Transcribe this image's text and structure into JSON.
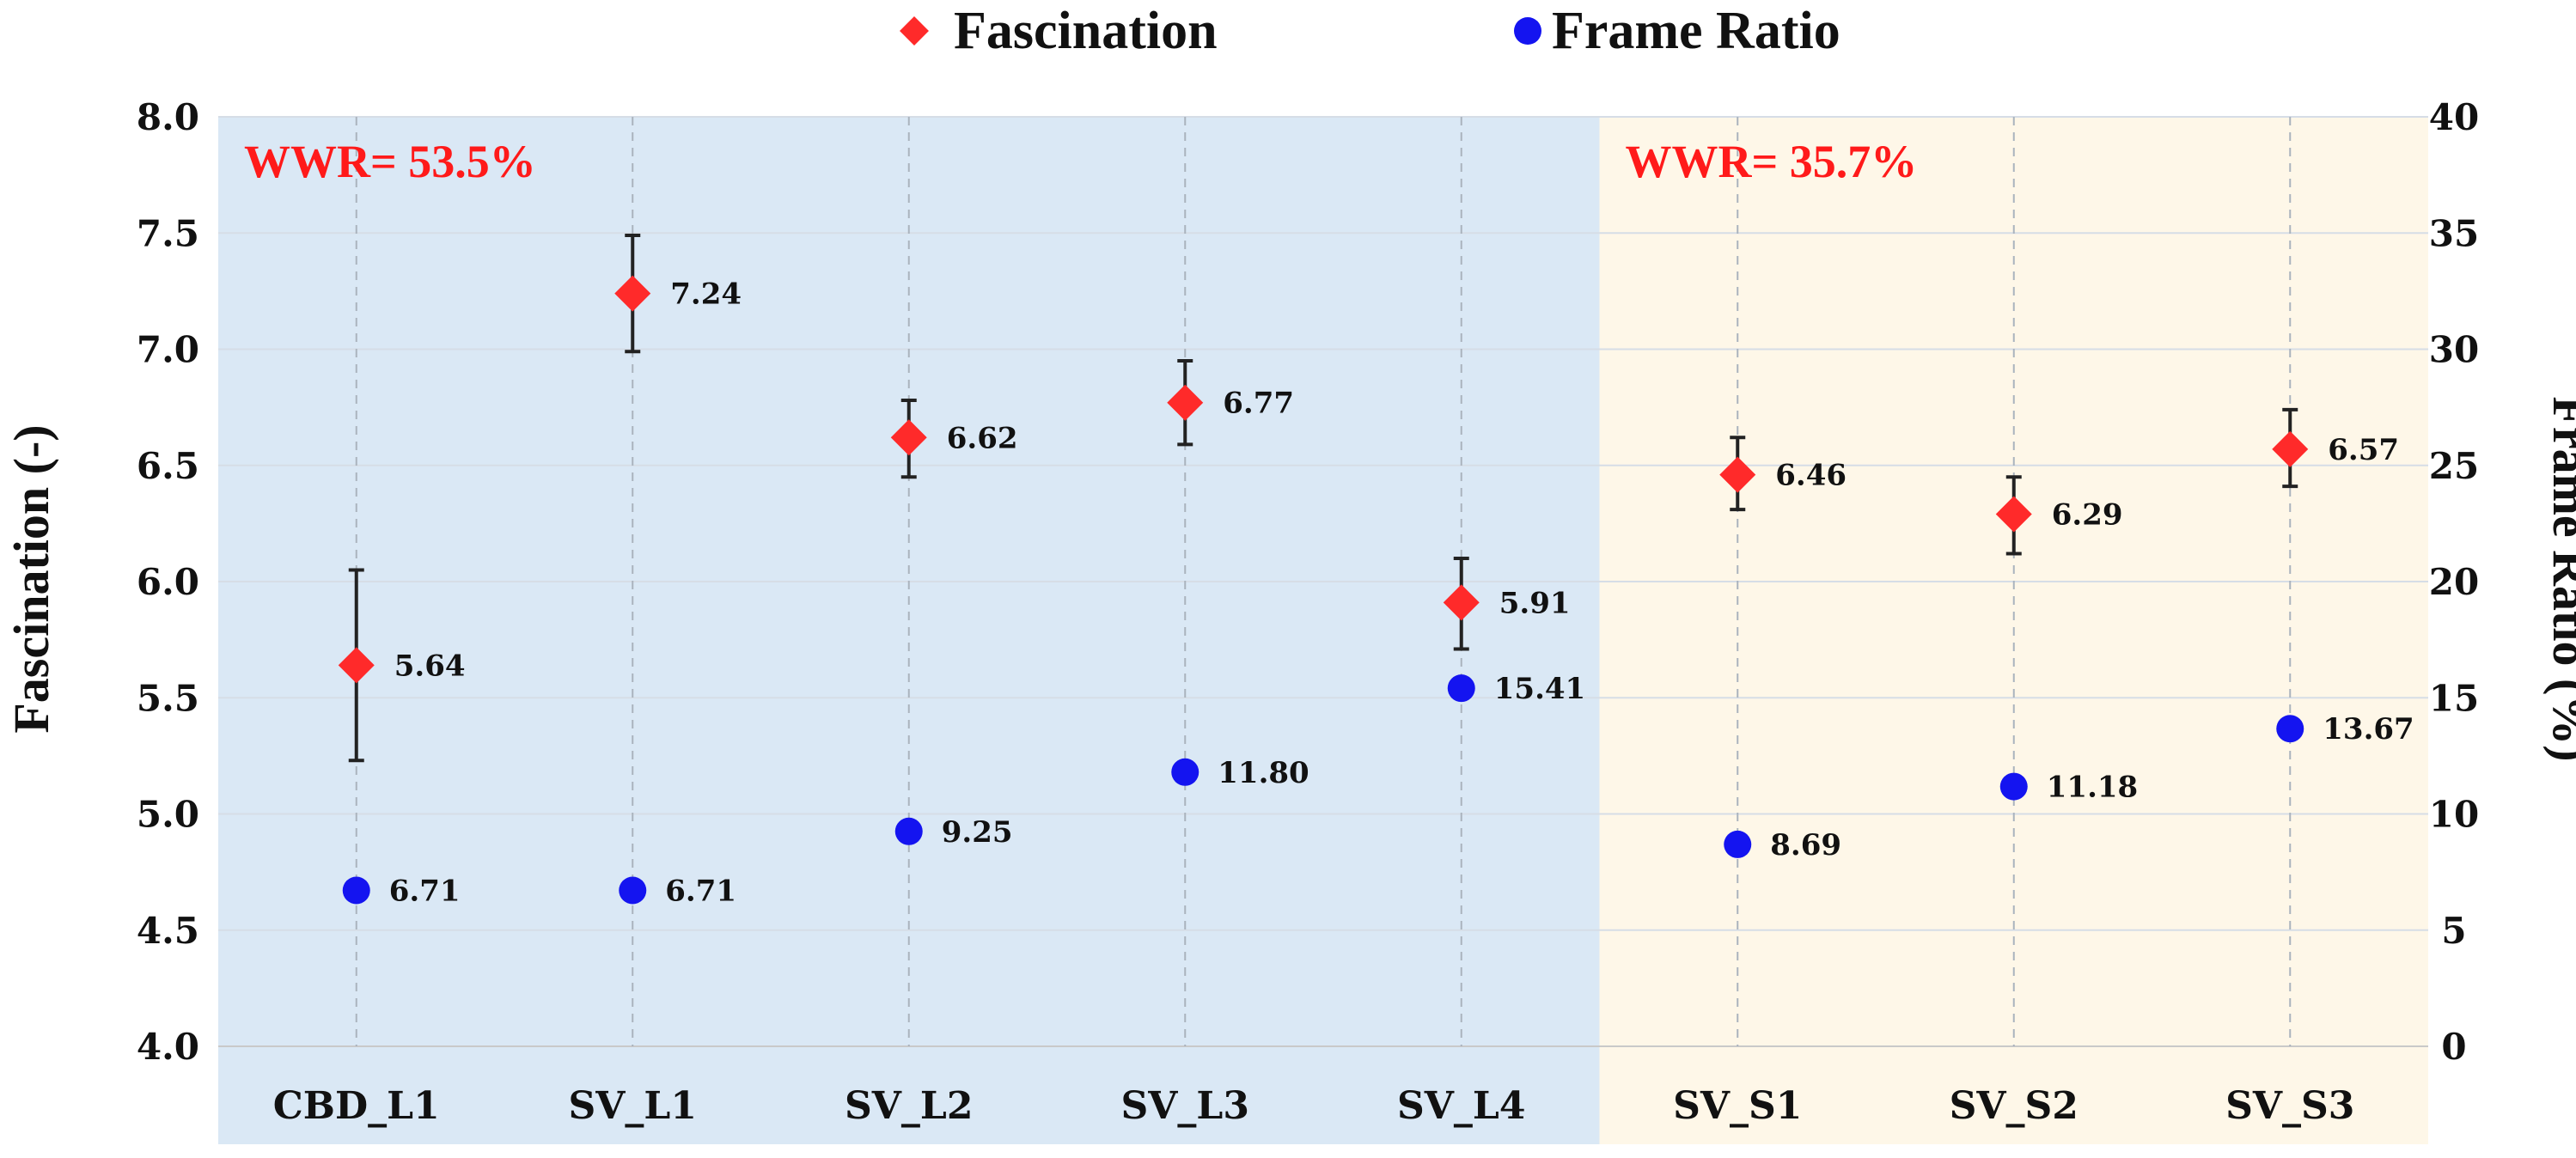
{
  "chart_data": {
    "type": "scatter",
    "title": "",
    "categories": [
      "CBD_L1",
      "SV_L1",
      "SV_L2",
      "SV_L3",
      "SV_L4",
      "SV_S1",
      "SV_S2",
      "SV_S3"
    ],
    "xlabel": "",
    "ylabel": "Fascination (-)",
    "ylabel_right": "Frame Ratio (%)",
    "ylim": [
      4.0,
      8.0
    ],
    "ylim_right": [
      0,
      40
    ],
    "yticks": [
      "4.0",
      "4.5",
      "5.0",
      "5.5",
      "6.0",
      "6.5",
      "7.0",
      "7.5",
      "8.0"
    ],
    "yticks_right": [
      "0",
      "5",
      "10",
      "15",
      "20",
      "25",
      "30",
      "35",
      "40"
    ],
    "series": [
      {
        "name": "Fascination",
        "axis": "left",
        "marker": "diamond",
        "color": "#ff2a2a",
        "values": [
          5.64,
          7.24,
          6.62,
          6.77,
          5.91,
          6.46,
          6.29,
          6.57
        ],
        "labels": [
          "5.64",
          "7.24",
          "6.62",
          "6.77",
          "5.91",
          "6.46",
          "6.29",
          "6.57"
        ],
        "error_low": [
          5.23,
          6.99,
          6.45,
          6.59,
          5.71,
          6.31,
          6.12,
          6.41
        ],
        "error_high": [
          6.05,
          7.49,
          6.78,
          6.95,
          6.1,
          6.62,
          6.45,
          6.74
        ]
      },
      {
        "name": "Frame Ratio",
        "axis": "right",
        "marker": "circle",
        "color": "#1414f0",
        "values": [
          6.71,
          6.71,
          9.25,
          11.8,
          15.41,
          8.69,
          11.18,
          13.67
        ],
        "labels": [
          "6.71",
          "6.71",
          "9.25",
          "11.80",
          "15.41",
          "8.69",
          "11.18",
          "13.67"
        ]
      }
    ],
    "groups": [
      {
        "label": "WWR= 53.5%",
        "from": 0,
        "to": 4,
        "color": "#dae8f5"
      },
      {
        "label": "WWR= 35.7%",
        "from": 5,
        "to": 7,
        "color": "#fef7e8"
      }
    ],
    "legend": {
      "position": "top-center"
    }
  }
}
